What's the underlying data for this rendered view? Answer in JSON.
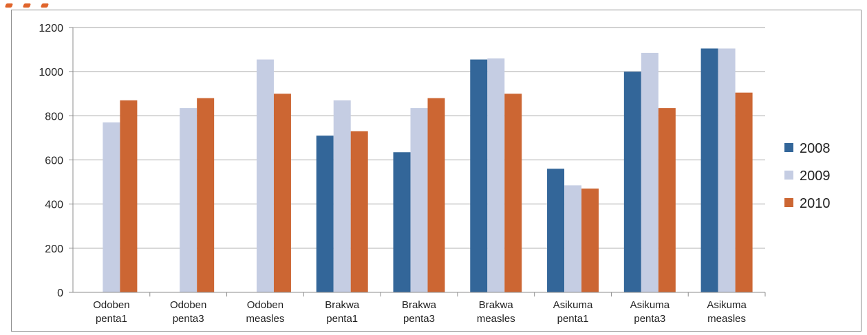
{
  "chart_data": {
    "type": "bar",
    "title": "",
    "xlabel": "",
    "ylabel": "",
    "ylim": [
      0,
      1200
    ],
    "yticks": [
      0,
      200,
      400,
      600,
      800,
      1000,
      1200
    ],
    "grid": true,
    "legend_position": "right",
    "categories": [
      [
        "Odoben",
        "penta1"
      ],
      [
        "Odoben",
        "penta3"
      ],
      [
        "Odoben",
        "measles"
      ],
      [
        "Brakwa",
        "penta1"
      ],
      [
        "Brakwa",
        "penta3"
      ],
      [
        "Brakwa",
        "measles"
      ],
      [
        "Asikuma",
        "penta1"
      ],
      [
        "Asikuma",
        "penta3"
      ],
      [
        "Asikuma",
        "measles"
      ]
    ],
    "series": [
      {
        "name": "2008",
        "color": "#336699",
        "values": [
          0,
          0,
          0,
          710,
          635,
          1055,
          560,
          1000,
          1105
        ]
      },
      {
        "name": "2009",
        "color": "#c5cde3",
        "values": [
          770,
          835,
          1055,
          870,
          835,
          1060,
          485,
          1085,
          1105
        ]
      },
      {
        "name": "2010",
        "color": "#cc6633",
        "values": [
          870,
          880,
          900,
          730,
          880,
          900,
          470,
          835,
          905
        ]
      }
    ]
  }
}
